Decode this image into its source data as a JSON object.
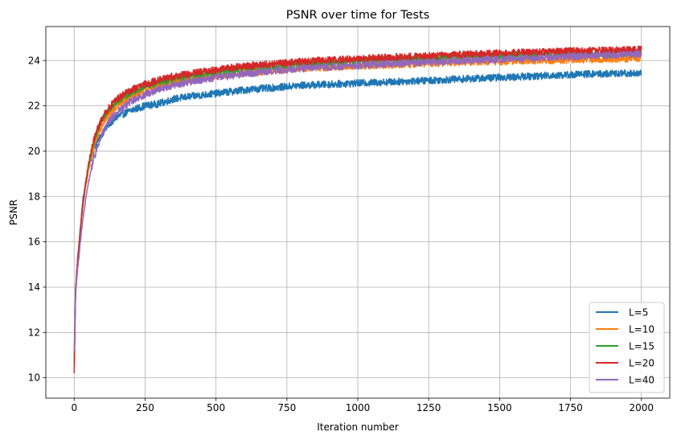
{
  "chart_data": {
    "type": "line",
    "title": "PSNR over time for Tests",
    "xlabel": "Iteration number",
    "ylabel": "PSNR",
    "xlim": [
      -100,
      2100
    ],
    "ylim": [
      9.1,
      25.5
    ],
    "xticks": [
      0,
      250,
      500,
      750,
      1000,
      1250,
      1500,
      1750,
      2000
    ],
    "yticks": [
      10,
      12,
      14,
      16,
      18,
      20,
      22,
      24
    ],
    "grid": true,
    "legend_position": "lower-right",
    "noise_amplitude": 0.32,
    "series": [
      {
        "name": "L=5",
        "color": "#1f77b4",
        "x": [
          0,
          5,
          10,
          20,
          30,
          40,
          50,
          60,
          70,
          80,
          100,
          125,
          150,
          200,
          250,
          300,
          350,
          400,
          500,
          600,
          700,
          750,
          800,
          900,
          1000,
          1100,
          1200,
          1250,
          1300,
          1400,
          1500,
          1600,
          1700,
          1750,
          1800,
          1900,
          2000
        ],
        "y": [
          10.5,
          13.8,
          14.8,
          16.3,
          17.8,
          18.6,
          19.2,
          19.7,
          20.1,
          20.4,
          20.8,
          21.2,
          21.5,
          21.8,
          22.0,
          22.1,
          22.3,
          22.4,
          22.55,
          22.7,
          22.8,
          22.85,
          22.9,
          22.95,
          23.0,
          23.05,
          23.1,
          23.12,
          23.15,
          23.2,
          23.25,
          23.3,
          23.35,
          23.37,
          23.4,
          23.42,
          23.45
        ]
      },
      {
        "name": "L=10",
        "color": "#ff7f0e",
        "x": [
          0,
          5,
          10,
          20,
          30,
          40,
          50,
          60,
          70,
          80,
          100,
          125,
          150,
          200,
          250,
          300,
          350,
          400,
          500,
          600,
          700,
          750,
          800,
          900,
          1000,
          1100,
          1200,
          1250,
          1300,
          1400,
          1500,
          1600,
          1700,
          1750,
          1800,
          1900,
          2000
        ],
        "y": [
          10.8,
          13.9,
          14.8,
          16.2,
          17.5,
          18.4,
          19.1,
          19.7,
          20.2,
          20.6,
          21.2,
          21.7,
          22.0,
          22.4,
          22.7,
          22.9,
          23.05,
          23.15,
          23.3,
          23.45,
          23.55,
          23.6,
          23.65,
          23.7,
          23.75,
          23.8,
          23.85,
          23.87,
          23.9,
          23.93,
          23.96,
          24.0,
          24.02,
          24.03,
          24.05,
          24.07,
          24.1
        ]
      },
      {
        "name": "L=15",
        "color": "#2ca02c",
        "x": [
          0,
          5,
          10,
          20,
          30,
          40,
          50,
          60,
          70,
          80,
          100,
          125,
          150,
          200,
          250,
          300,
          350,
          400,
          500,
          600,
          700,
          750,
          800,
          900,
          1000,
          1100,
          1200,
          1250,
          1300,
          1400,
          1500,
          1600,
          1700,
          1750,
          1800,
          1900,
          2000
        ],
        "y": [
          10.6,
          13.9,
          14.9,
          16.3,
          17.6,
          18.5,
          19.3,
          19.9,
          20.4,
          20.8,
          21.4,
          21.9,
          22.2,
          22.6,
          22.85,
          23.05,
          23.2,
          23.3,
          23.5,
          23.65,
          23.75,
          23.8,
          23.85,
          23.92,
          23.98,
          24.05,
          24.1,
          24.12,
          24.15,
          24.2,
          24.23,
          24.26,
          24.28,
          24.3,
          24.3,
          24.32,
          24.35
        ]
      },
      {
        "name": "L=20",
        "color": "#d62728",
        "x": [
          0,
          5,
          10,
          20,
          30,
          40,
          50,
          60,
          70,
          80,
          100,
          125,
          150,
          200,
          250,
          300,
          350,
          400,
          500,
          600,
          700,
          750,
          800,
          900,
          1000,
          1100,
          1200,
          1250,
          1300,
          1400,
          1500,
          1600,
          1700,
          1750,
          1800,
          1900,
          2000
        ],
        "y": [
          10.2,
          13.8,
          14.9,
          16.3,
          17.6,
          18.6,
          19.4,
          20.0,
          20.5,
          20.9,
          21.5,
          21.95,
          22.3,
          22.7,
          22.95,
          23.15,
          23.3,
          23.4,
          23.6,
          23.75,
          23.85,
          23.9,
          23.95,
          24.02,
          24.08,
          24.13,
          24.18,
          24.2,
          24.23,
          24.28,
          24.32,
          24.36,
          24.4,
          24.42,
          24.43,
          24.45,
          24.48
        ]
      },
      {
        "name": "L=40",
        "color": "#9467bd",
        "x": [
          0,
          5,
          10,
          20,
          30,
          40,
          50,
          60,
          70,
          80,
          100,
          125,
          150,
          200,
          250,
          300,
          350,
          400,
          500,
          600,
          700,
          750,
          800,
          900,
          1000,
          1100,
          1200,
          1250,
          1300,
          1400,
          1500,
          1600,
          1700,
          1750,
          1800,
          1900,
          2000
        ],
        "y": [
          11.2,
          13.7,
          14.5,
          15.8,
          16.9,
          17.8,
          18.6,
          19.2,
          19.7,
          20.1,
          20.8,
          21.35,
          21.7,
          22.2,
          22.5,
          22.75,
          22.9,
          23.05,
          23.25,
          23.4,
          23.55,
          23.6,
          23.65,
          23.72,
          23.78,
          23.85,
          23.9,
          23.93,
          23.95,
          24.0,
          24.05,
          24.1,
          24.15,
          24.17,
          24.2,
          24.25,
          24.3
        ]
      }
    ]
  }
}
